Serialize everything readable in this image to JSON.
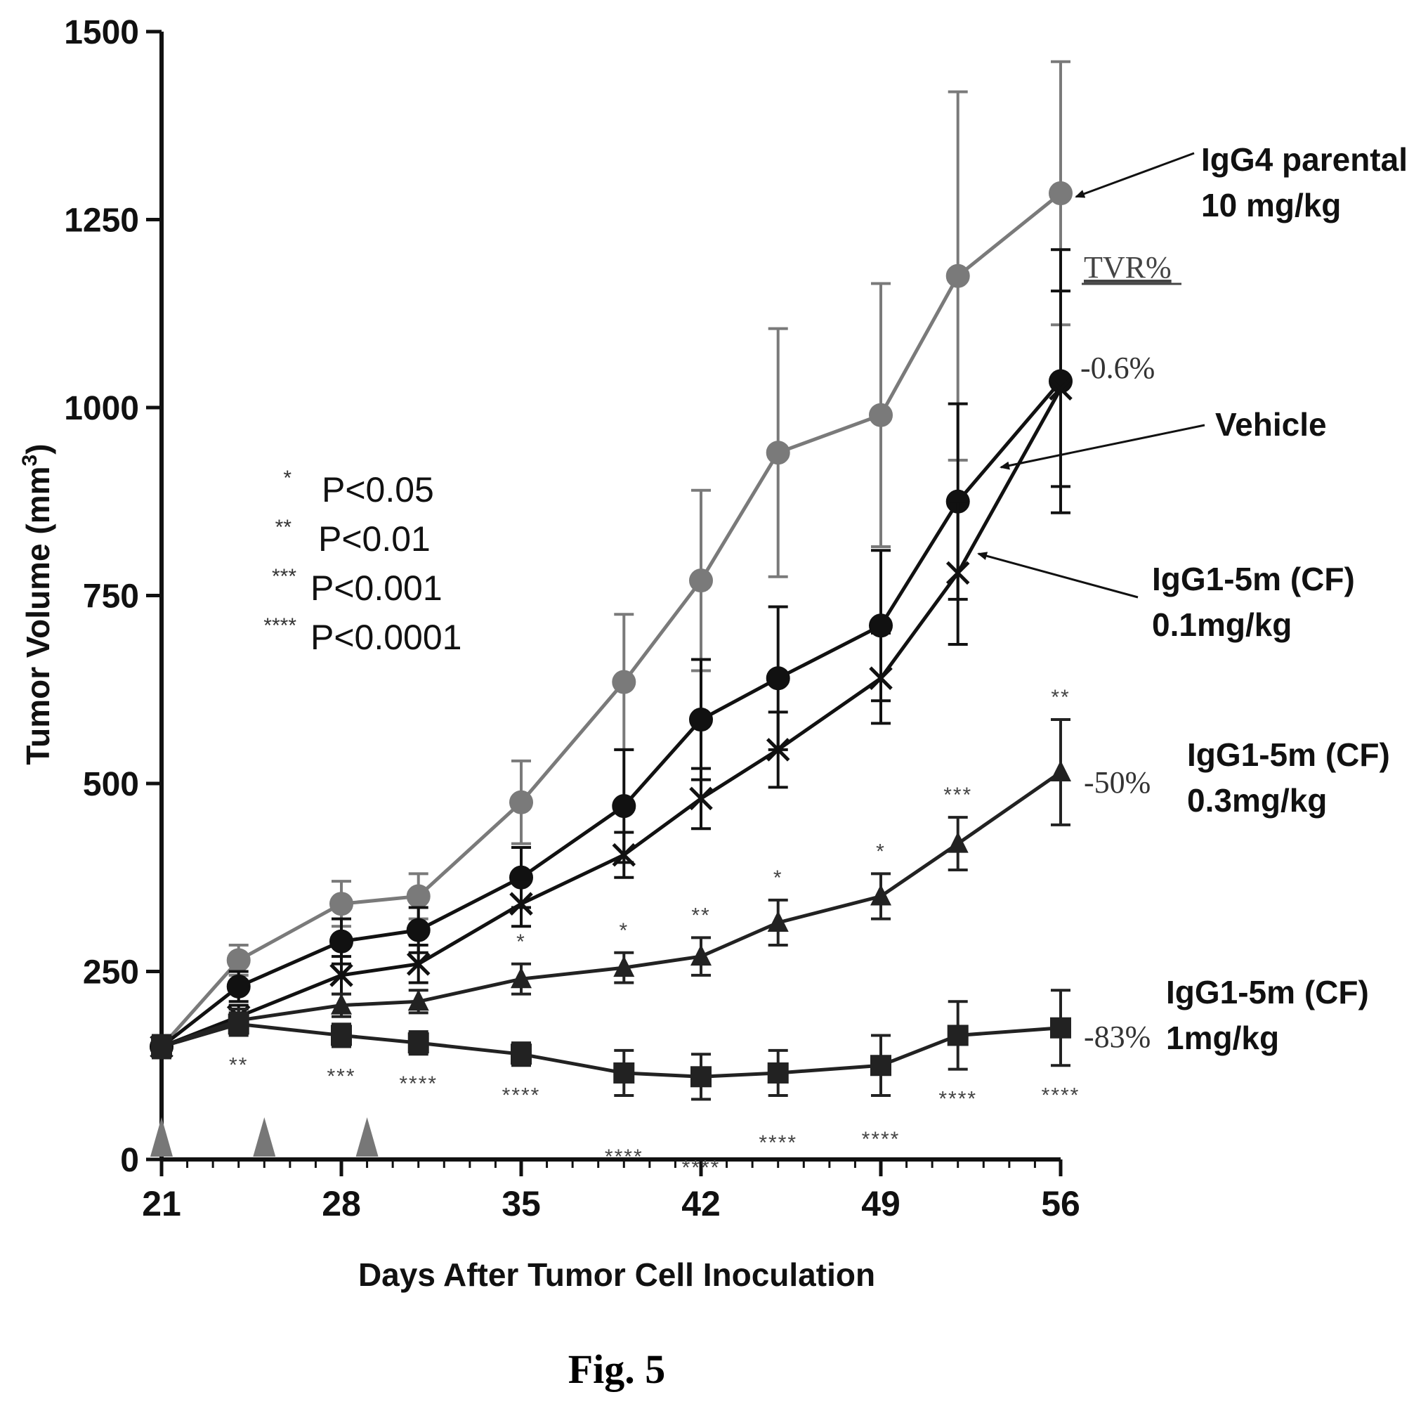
{
  "chart_data": {
    "type": "line",
    "xlabel": "Days After Tumor Cell Inoculation",
    "ylabel": "Tumor Volume (mm",
    "ylabel_sup": "3",
    "ylabel_close": ")",
    "xlim": [
      21,
      56
    ],
    "ylim": [
      0,
      1500
    ],
    "xticks": [
      21,
      28,
      35,
      42,
      49,
      56
    ],
    "yticks": [
      0,
      250,
      500,
      750,
      1000,
      1250,
      1500
    ],
    "dosing_days": [
      21,
      25,
      29
    ],
    "significance_legend": [
      {
        "stars": "*",
        "label": "P<0.05"
      },
      {
        "stars": "**",
        "label": "P<0.01"
      },
      {
        "stars": "***",
        "label": "P<0.001"
      },
      {
        "stars": "****",
        "label": "P<0.0001"
      }
    ],
    "tvr_header": "TVR%",
    "series": [
      {
        "name": "IgG4 parental",
        "dose": "10 mg/kg",
        "marker": "circle",
        "color": "#7a7a7a",
        "x": [
          21,
          24,
          28,
          31,
          35,
          39,
          42,
          45,
          49,
          52,
          56
        ],
        "y": [
          150,
          265,
          340,
          350,
          475,
          635,
          770,
          940,
          990,
          1175,
          1285
        ],
        "err": [
          15,
          20,
          30,
          30,
          55,
          90,
          120,
          165,
          175,
          245,
          175
        ]
      },
      {
        "name": "Vehicle",
        "marker": "filled-circle",
        "color": "#111111",
        "tvr": "-0.6%",
        "x": [
          21,
          24,
          28,
          31,
          35,
          39,
          42,
          45,
          49,
          52,
          56
        ],
        "y": [
          150,
          230,
          290,
          305,
          375,
          470,
          585,
          640,
          710,
          875,
          1035
        ],
        "err": [
          15,
          20,
          30,
          30,
          40,
          75,
          80,
          95,
          100,
          130,
          175
        ]
      },
      {
        "name": "IgG1-5m (CF)",
        "dose": "0.1mg/kg",
        "marker": "x",
        "color": "#111111",
        "x": [
          21,
          24,
          28,
          31,
          35,
          39,
          42,
          45,
          49,
          52,
          56
        ],
        "y": [
          150,
          190,
          245,
          260,
          340,
          405,
          480,
          545,
          640,
          780,
          1025
        ],
        "err": [
          15,
          15,
          25,
          25,
          30,
          30,
          40,
          50,
          60,
          95,
          130
        ]
      },
      {
        "name": "IgG1-5m (CF)",
        "dose": "0.3mg/kg",
        "marker": "triangle",
        "color": "#222222",
        "tvr": "-50%",
        "x": [
          21,
          24,
          28,
          31,
          35,
          39,
          42,
          45,
          49,
          52,
          56
        ],
        "y": [
          150,
          185,
          205,
          210,
          240,
          255,
          270,
          315,
          350,
          420,
          515
        ],
        "err": [
          15,
          15,
          15,
          15,
          20,
          20,
          25,
          30,
          30,
          35,
          70
        ],
        "stars": [
          "",
          "",
          "",
          "",
          "*",
          "*",
          "**",
          "*",
          "*",
          "***",
          "**"
        ]
      },
      {
        "name": "IgG1-5m (CF)",
        "dose": "1mg/kg",
        "marker": "square",
        "color": "#222222",
        "tvr": "-83%",
        "x": [
          21,
          24,
          28,
          31,
          35,
          39,
          42,
          45,
          49,
          52,
          56
        ],
        "y": [
          150,
          180,
          165,
          155,
          140,
          115,
          110,
          115,
          125,
          165,
          175
        ],
        "err": [
          15,
          15,
          15,
          15,
          15,
          30,
          30,
          30,
          40,
          45,
          50
        ],
        "stars": [
          "",
          "**",
          "***",
          "****",
          "****",
          "****",
          "****",
          "****",
          "****",
          "****",
          "****"
        ]
      }
    ]
  },
  "figure_caption": "Fig. 5"
}
